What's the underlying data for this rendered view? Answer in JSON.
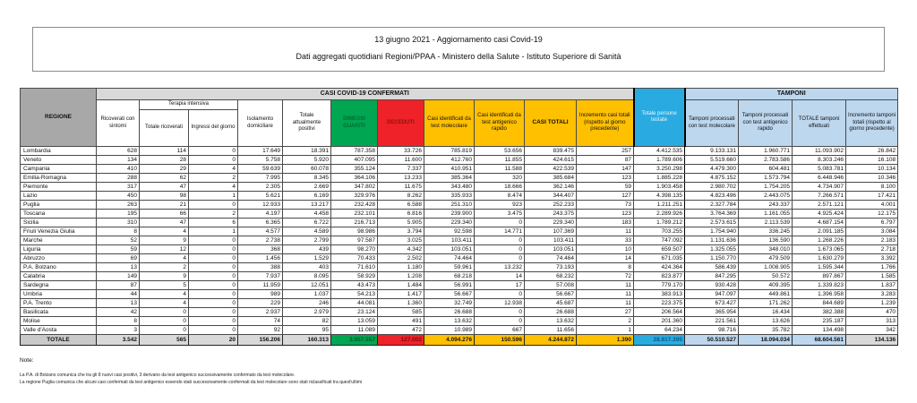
{
  "title": {
    "line1": "13 giugno 2021 - Aggiornamento casi Covid-19",
    "line2": "Dati aggregati quotidiani Regioni/PPAA - Ministero della Salute - Istituto Superiore di Sanità"
  },
  "table": {
    "headers": {
      "regione": "REGIONE",
      "casi_confermati_band": "CASI COVID-19 CONFERMATI",
      "ricoverati": "Ricoverati con sintomi",
      "terapia_intensiva": "Terapia intensiva",
      "ti_totale": "Totale ricoverati",
      "ti_ingressi": "Ingressi del giorno",
      "isolamento": "Isolamento domiciliare",
      "positivi": "Totale attualmente positivi",
      "dimessi": "DIMESSI GUARITI",
      "deceduti": "DECEDUTI",
      "casi_mol": "Casi identificati da test molecolare",
      "casi_ant": "Casi identificati da test antigenico rapido",
      "casi_tot": "CASI TOTALI",
      "incr_casi": "Incremento casi totali (rispetto al giorno precedente)",
      "testate": "Totale persone testate",
      "tamponi_band": "TAMPONI",
      "tamp_mol": "Tamponi processati con test molecolare",
      "tamp_ant": "Tamponi processati con test antigenico rapido",
      "tamp_tot": "TOTALE tamponi effettuati",
      "incr_tamp": "Incremento tamponi totali (rispetto al giorno precedente)"
    },
    "rows": [
      {
        "regione": "Lombardia",
        "values": [
          "628",
          "114",
          "0",
          "17.649",
          "18.391",
          "787.358",
          "33.726",
          "785.819",
          "53.656",
          "839.475",
          "257",
          "4.412.535",
          "9.133.131",
          "1.960.771",
          "11.093.902",
          "26.842"
        ]
      },
      {
        "regione": "Veneto",
        "values": [
          "134",
          "28",
          "0",
          "5.758",
          "5.920",
          "407.095",
          "11.600",
          "412.760",
          "11.855",
          "424.615",
          "87",
          "1.789.606",
          "5.519.660",
          "2.783.586",
          "8.303.246",
          "16.108"
        ]
      },
      {
        "regione": "Campania",
        "values": [
          "410",
          "29",
          "4",
          "59.639",
          "60.078",
          "355.124",
          "7.337",
          "410.951",
          "11.588",
          "422.539",
          "147",
          "3.250.298",
          "4.479.300",
          "604.481",
          "5.083.781",
          "10.134"
        ]
      },
      {
        "regione": "Emilia-Romagna",
        "values": [
          "288",
          "62",
          "2",
          "7.995",
          "8.345",
          "364.106",
          "13.233",
          "385.364",
          "320",
          "385.684",
          "123",
          "1.885.228",
          "4.875.152",
          "1.573.794",
          "6.448.946",
          "10.346"
        ]
      },
      {
        "regione": "Piemonte",
        "values": [
          "317",
          "47",
          "4",
          "2.305",
          "2.669",
          "347.802",
          "11.675",
          "343.480",
          "18.666",
          "362.146",
          "59",
          "1.903.458",
          "2.980.702",
          "1.754.205",
          "4.734.907",
          "8.100"
        ]
      },
      {
        "regione": "Lazio",
        "values": [
          "450",
          "98",
          "1",
          "5.621",
          "6.169",
          "329.976",
          "8.262",
          "335.933",
          "8.474",
          "344.407",
          "127",
          "4.398.135",
          "4.823.496",
          "2.443.075",
          "7.266.571",
          "17.421"
        ]
      },
      {
        "regione": "Puglia",
        "values": [
          "263",
          "21",
          "0",
          "12.933",
          "13.217",
          "232.428",
          "6.588",
          "251.310",
          "923",
          "252.233",
          "73",
          "1.211.251",
          "2.327.784",
          "243.337",
          "2.571.121",
          "4.001"
        ]
      },
      {
        "regione": "Toscana",
        "values": [
          "195",
          "66",
          "2",
          "4.197",
          "4.458",
          "232.101",
          "6.816",
          "239.900",
          "3.475",
          "243.375",
          "123",
          "2.289.926",
          "3.764.369",
          "1.161.055",
          "4.925.424",
          "12.175"
        ]
      },
      {
        "regione": "Sicilia",
        "values": [
          "310",
          "47",
          "6",
          "6.365",
          "6.722",
          "216.713",
          "5.905",
          "229.340",
          "0",
          "229.340",
          "183",
          "1.789.212",
          "2.573.615",
          "2.113.539",
          "4.687.154",
          "6.797"
        ]
      },
      {
        "regione": "Friuli Venezia Giulia",
        "values": [
          "8",
          "4",
          "1",
          "4.577",
          "4.589",
          "98.986",
          "3.794",
          "92.598",
          "14.771",
          "107.369",
          "11",
          "703.255",
          "1.754.940",
          "336.245",
          "2.091.185",
          "3.084"
        ]
      },
      {
        "regione": "Marche",
        "values": [
          "52",
          "9",
          "0",
          "2.738",
          "2.799",
          "97.587",
          "3.025",
          "103.411",
          "0",
          "103.411",
          "33",
          "747.092",
          "1.131.636",
          "136.590",
          "1.268.226",
          "2.183"
        ]
      },
      {
        "regione": "Liguria",
        "values": [
          "59",
          "12",
          "0",
          "368",
          "439",
          "98.270",
          "4.342",
          "103.051",
          "0",
          "103.051",
          "10",
          "659.507",
          "1.325.055",
          "348.010",
          "1.673.065",
          "2.718"
        ]
      },
      {
        "regione": "Abruzzo",
        "values": [
          "69",
          "4",
          "0",
          "1.456",
          "1.529",
          "70.433",
          "2.502",
          "74.464",
          "0",
          "74.464",
          "14",
          "671.035",
          "1.150.770",
          "479.509",
          "1.630.279",
          "3.392"
        ]
      },
      {
        "regione": "P.A. Bolzano",
        "values": [
          "13",
          "2",
          "0",
          "388",
          "403",
          "71.610",
          "1.180",
          "59.961",
          "13.232",
          "73.193",
          "8",
          "424.364",
          "586.439",
          "1.008.905",
          "1.595.344",
          "1.766"
        ]
      },
      {
        "regione": "Calabria",
        "values": [
          "149",
          "9",
          "0",
          "7.937",
          "8.095",
          "58.929",
          "1.208",
          "68.218",
          "14",
          "68.232",
          "72",
          "823.877",
          "847.295",
          "50.572",
          "897.867",
          "1.585"
        ]
      },
      {
        "regione": "Sardegna",
        "values": [
          "87",
          "5",
          "0",
          "11.959",
          "12.051",
          "43.473",
          "1.484",
          "56.991",
          "17",
          "57.008",
          "11",
          "779.170",
          "930.428",
          "409.395",
          "1.339.823",
          "1.837"
        ]
      },
      {
        "regione": "Umbria",
        "values": [
          "44",
          "4",
          "0",
          "989",
          "1.037",
          "54.213",
          "1.417",
          "56.667",
          "0",
          "56.667",
          "11",
          "383.913",
          "947.097",
          "449.861",
          "1.396.958",
          "3.283"
        ]
      },
      {
        "regione": "P.A. Trento",
        "values": [
          "13",
          "4",
          "0",
          "229",
          "246",
          "44.081",
          "1.360",
          "32.749",
          "12.938",
          "45.687",
          "11",
          "223.375",
          "673.427",
          "171.262",
          "844.689",
          "1.239"
        ]
      },
      {
        "regione": "Basilicata",
        "values": [
          "42",
          "0",
          "0",
          "2.937",
          "2.979",
          "23.124",
          "585",
          "26.688",
          "0",
          "26.688",
          "27",
          "206.564",
          "365.954",
          "16.434",
          "382.388",
          "470"
        ]
      },
      {
        "regione": "Molise",
        "values": [
          "8",
          "0",
          "0",
          "74",
          "82",
          "13.059",
          "491",
          "13.632",
          "0",
          "13.632",
          "2",
          "201.360",
          "221.561",
          "13.626",
          "235.187",
          "313"
        ]
      },
      {
        "regione": "Valle d'Aosta",
        "values": [
          "3",
          "0",
          "0",
          "92",
          "95",
          "11.089",
          "472",
          "10.989",
          "667",
          "11.656",
          "1",
          "64.234",
          "98.716",
          "35.782",
          "134.498",
          "342"
        ]
      }
    ],
    "totale": {
      "label": "TOTALE",
      "values": [
        "3.542",
        "565",
        "20",
        "156.206",
        "160.313",
        "3.957.557",
        "127.002",
        "4.094.276",
        "150.596",
        "4.244.872",
        "1.390",
        "28.817.395",
        "50.510.527",
        "18.094.034",
        "68.604.561",
        "134.136"
      ]
    }
  },
  "notes": {
    "heading": "Note:",
    "lines": [
      "La P.A. di Bolzano comunica che tra gli 8 nuovi casi positivi, 3 derivano da test antigenico successivamente confermato da test molecolare.",
      "La regione Puglia comunica che alcuni casi confermati da test antigenico essendo stati successivamente confermati da test molecolare sono stati riclassificati tra quest'ultimi"
    ]
  },
  "colors": {
    "green": "#00A651",
    "red": "#EE2228",
    "orange": "#FFC000",
    "blue": "#29ABE2",
    "light_blue": "#BDD7EE",
    "header_gray": "#A8A8A8",
    "band_gray": "#D9D9D9"
  }
}
